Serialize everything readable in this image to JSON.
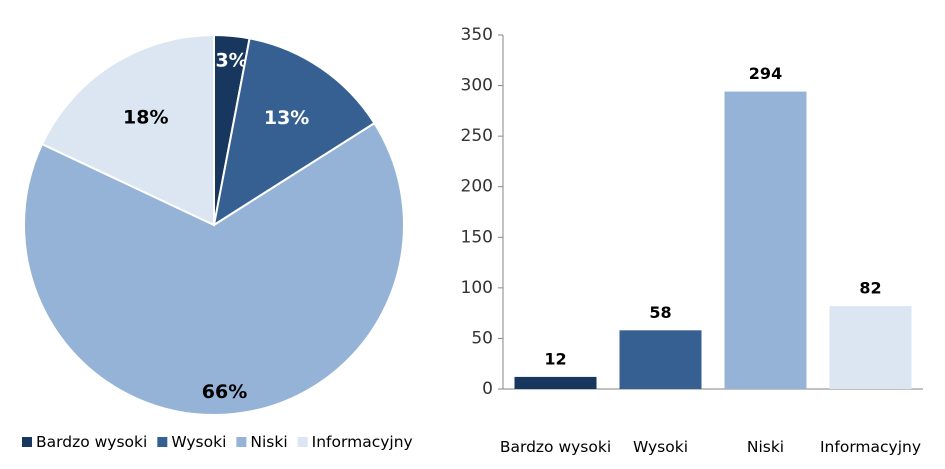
{
  "colors": [
    "#17375e",
    "#376092",
    "#95b3d7",
    "#dce6f2"
  ],
  "chart_data": [
    {
      "type": "pie",
      "categories": [
        "Bardzo wysoki",
        "Wysoki",
        "Niski",
        "Informacyjny"
      ],
      "values": [
        3,
        13,
        66,
        18
      ],
      "labels": [
        "3%",
        "13%",
        "66%",
        "18%"
      ],
      "legend": "bottom"
    },
    {
      "type": "bar",
      "categories": [
        "Bardzo wysoki",
        "Wysoki",
        "Niski",
        "Informacyjny"
      ],
      "values": [
        12,
        58,
        294,
        82
      ],
      "data_labels": [
        "12",
        "58",
        "294",
        "82"
      ],
      "ylim": [
        0,
        350
      ],
      "yticks": [
        "0",
        "50",
        "100",
        "150",
        "200",
        "250",
        "300",
        "350"
      ],
      "grid": false
    }
  ]
}
